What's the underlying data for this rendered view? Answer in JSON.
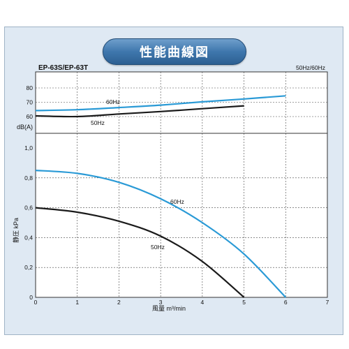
{
  "title": "性能曲線図",
  "chart_data": {
    "type": "line",
    "model_label": "EP-63S/EP-63T",
    "frequency_label": "50Hz/60Hz",
    "xlabel": "風量 m³/min",
    "xlim": [
      0,
      7
    ],
    "x_ticks": [
      "0",
      "1",
      "2",
      "3",
      "4",
      "5",
      "6",
      "7"
    ],
    "noise_panel": {
      "ylabel": "dB(A)",
      "y_ticks": [
        "60",
        "70",
        "80"
      ],
      "series": [
        {
          "name": "60Hz",
          "color": "#2a9ad6",
          "x": [
            0,
            1,
            2,
            3,
            4,
            5,
            6
          ],
          "y": [
            64.2,
            64.8,
            66.3,
            68.0,
            70.3,
            72.3,
            74.5
          ]
        },
        {
          "name": "50Hz",
          "color": "#1a1a1a",
          "x": [
            0,
            1,
            2,
            3,
            4,
            5
          ],
          "y": [
            60.5,
            60.0,
            61.8,
            63.5,
            65.5,
            67.5
          ]
        }
      ]
    },
    "pressure_panel": {
      "ylabel": "静圧 kPa",
      "ylim": [
        0,
        1.0
      ],
      "y_ticks": [
        "0",
        "0,2",
        "0,4",
        "0,6",
        "0,8",
        "1,0"
      ],
      "series": [
        {
          "name": "60Hz",
          "color": "#2a9ad6",
          "x": [
            0,
            1,
            2,
            3,
            4,
            5,
            6
          ],
          "y": [
            0.85,
            0.83,
            0.77,
            0.66,
            0.5,
            0.29,
            0.0
          ]
        },
        {
          "name": "50Hz",
          "color": "#1a1a1a",
          "x": [
            0,
            1,
            2,
            3,
            4,
            5
          ],
          "y": [
            0.6,
            0.57,
            0.51,
            0.41,
            0.24,
            0.0
          ]
        }
      ]
    }
  }
}
